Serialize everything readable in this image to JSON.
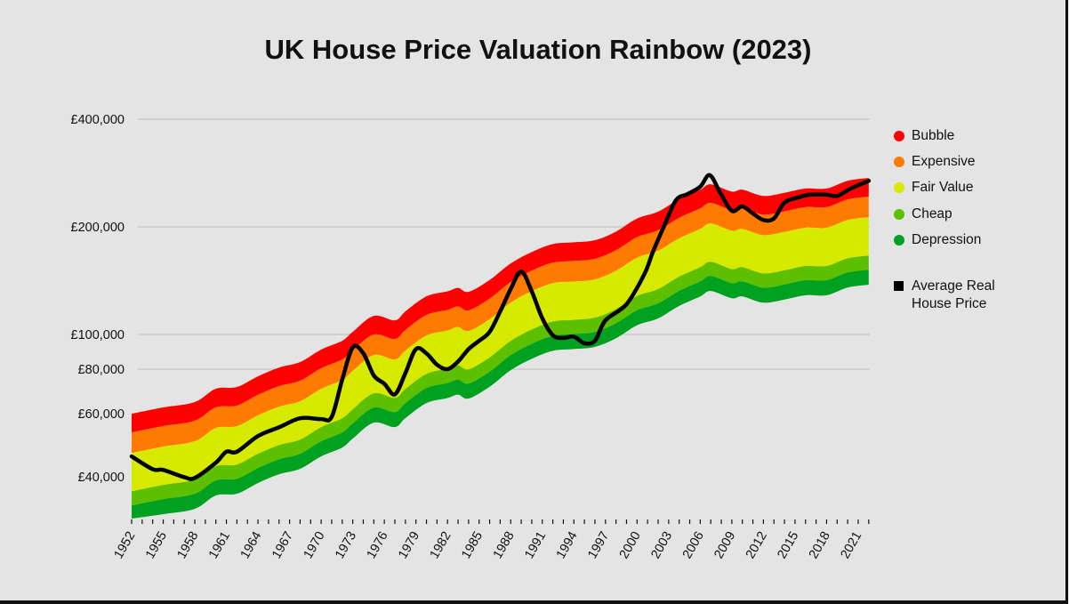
{
  "chart_data": {
    "type": "area",
    "title": "UK House Price Valuation Rainbow (2023)",
    "y_scale": "log",
    "ylim": [
      30000,
      400000
    ],
    "xlim": [
      1952,
      2022
    ],
    "y_ticks": [
      40000,
      60000,
      80000,
      100000,
      200000,
      400000
    ],
    "y_tick_labels": [
      "£40,000",
      "£60,000",
      "£80,000",
      "£100,000",
      "£200,000",
      "£400,000"
    ],
    "x_tick_labels": [
      "1952",
      "1955",
      "1958",
      "1961",
      "1964",
      "1967",
      "1970",
      "1973",
      "1976",
      "1979",
      "1982",
      "1985",
      "1988",
      "1991",
      "1994",
      "1997",
      "2000",
      "2003",
      "2006",
      "2009",
      "2012",
      "2015",
      "2018",
      "2021"
    ],
    "grid": "horizontal",
    "legend_position": "right",
    "bands": [
      {
        "name": "Bubble",
        "color": "#ff0000"
      },
      {
        "name": "Expensive",
        "color": "#ff7a00"
      },
      {
        "name": "Fair Value",
        "color": "#d6ea00"
      },
      {
        "name": "Cheap",
        "color": "#5cc000"
      },
      {
        "name": "Depression",
        "color": "#00a020"
      }
    ],
    "band_upper_edge": {
      "x": [
        1952,
        1955,
        1958,
        1960,
        1962,
        1964,
        1966,
        1968,
        1970,
        1972,
        1973,
        1975,
        1977,
        1978,
        1980,
        1982,
        1983,
        1984,
        1986,
        1988,
        1990,
        1992,
        1994,
        1996,
        1998,
        2000,
        2002,
        2004,
        2006,
        2007,
        2009,
        2010,
        2012,
        2014,
        2016,
        2018,
        2020,
        2022
      ],
      "y": [
        60000,
        62500,
        64700,
        70500,
        71300,
        76400,
        80800,
        83700,
        90700,
        96000,
        101700,
        112700,
        109500,
        116000,
        127800,
        132000,
        135000,
        131600,
        142000,
        158000,
        170000,
        179000,
        181000,
        183500,
        194000,
        211000,
        220600,
        239000,
        254000,
        263000,
        251000,
        254000,
        244000,
        249000,
        256000,
        256000,
        269000,
        274000
      ]
    },
    "band_boundaries_relative_to_upper_edge": [
      1,
      0.887,
      0.777,
      0.607,
      0.554,
      0.503
    ],
    "series": [
      {
        "name": "Average Real House Price",
        "color": "#000000",
        "x": [
          1952,
          1954,
          1955,
          1957,
          1958,
          1960,
          1961,
          1962,
          1964,
          1966,
          1968,
          1970,
          1971,
          1972,
          1973,
          1974,
          1975,
          1976,
          1977,
          1978,
          1979,
          1980,
          1981,
          1982,
          1983,
          1984,
          1985,
          1986,
          1987,
          1988,
          1989,
          1990,
          1991,
          1992,
          1993,
          1994,
          1995,
          1996,
          1997,
          1999,
          2000.7,
          2001.5,
          2002.6,
          2003.7,
          2004.8,
          2006,
          2006.9,
          2007.9,
          2009,
          2010,
          2011,
          2012,
          2013,
          2014,
          2015.3,
          2016.4,
          2018,
          2019,
          2020.3,
          2022
        ],
        "y": [
          45600,
          42000,
          41800,
          39900,
          39700,
          43800,
          47000,
          47000,
          52000,
          55000,
          58300,
          58000,
          58800,
          74800,
          92000,
          88600,
          76800,
          72800,
          68000,
          78000,
          91000,
          88500,
          82300,
          80000,
          84000,
          91000,
          96000,
          101700,
          116000,
          134000,
          150000,
          132000,
          111000,
          99500,
          97800,
          98600,
          94500,
          96000,
          109500,
          121500,
          147600,
          170000,
          202000,
          237500,
          247000,
          259000,
          279000,
          249000,
          221700,
          228000,
          218000,
          209000,
          211000,
          233700,
          241600,
          246000,
          246000,
          244000,
          256000,
          269000
        ]
      }
    ]
  },
  "legend": {
    "items": [
      "Bubble",
      "Expensive",
      "Fair Value",
      "Cheap",
      "Depression"
    ],
    "line_item": "Average Real House Price"
  }
}
